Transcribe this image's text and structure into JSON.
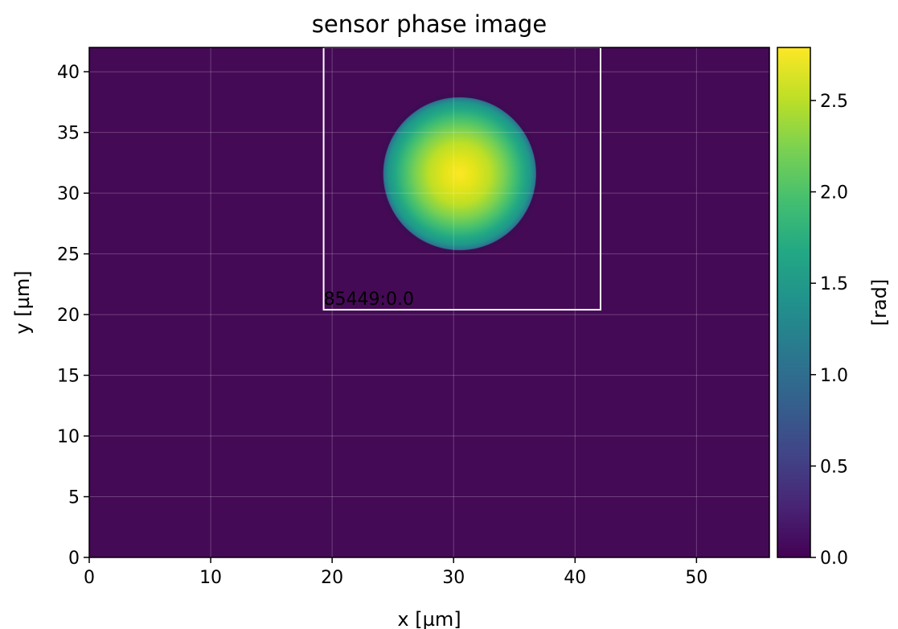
{
  "chart_data": {
    "type": "heatmap",
    "title": "sensor phase image",
    "xlabel": "x [µm]",
    "ylabel": "y [µm]",
    "xlim": [
      0,
      56
    ],
    "ylim": [
      0,
      42
    ],
    "x_ticks": [
      0,
      10,
      20,
      30,
      40,
      50
    ],
    "y_ticks": [
      0,
      5,
      10,
      15,
      20,
      25,
      30,
      35,
      40
    ],
    "grid": true,
    "colormap": "viridis",
    "background_value": 0.07,
    "feature": {
      "shape": "disc",
      "center": [
        30.5,
        31.6
      ],
      "radius": 6.3,
      "peak_value": 2.75,
      "edge_value": 0.7
    },
    "colorbar": {
      "label": "[rad]",
      "range": [
        0.0,
        2.79
      ],
      "ticks": [
        "0.0",
        "0.5",
        "1.0",
        "1.5",
        "2.0",
        "2.5"
      ]
    },
    "annotation": {
      "label": "85449:0.0",
      "box": {
        "x0": 19.3,
        "x1": 42.1,
        "y0": 20.4,
        "y1": 42
      },
      "color": "#ffffff"
    }
  }
}
